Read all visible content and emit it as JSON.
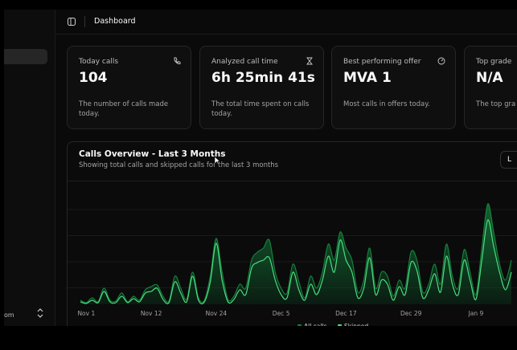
{
  "sidebar": {
    "footer": "om"
  },
  "header": {
    "title": "Dashboard"
  },
  "cards": [
    {
      "title": "Today calls",
      "value": "104",
      "description": "The number of calls made today."
    },
    {
      "title": "Analyzed call time",
      "value": "6h 25min 41s",
      "description": "The total time spent on calls today."
    },
    {
      "title": "Best performing offer",
      "value": "MVA 1",
      "description": "Most calls in offers today."
    },
    {
      "title": "Top grade",
      "value": "N/A",
      "description": "The top gra"
    }
  ],
  "range_button": "L",
  "chart_data": {
    "type": "area",
    "title": "Calls Overview - Last 3 Months",
    "subtitle": "Showing total calls and skipped calls for the last 3 months",
    "categories": [
      null,
      "Nov 1",
      null,
      null,
      null,
      null,
      null,
      null,
      null,
      null,
      null,
      null,
      "Nov 12",
      null,
      null,
      null,
      null,
      null,
      null,
      null,
      null,
      null,
      null,
      "Nov 24",
      null,
      null,
      null,
      null,
      null,
      null,
      null,
      null,
      null,
      null,
      "Dec 5",
      null,
      null,
      null,
      null,
      null,
      null,
      null,
      null,
      null,
      null,
      "Dec 17",
      null,
      null,
      null,
      null,
      null,
      null,
      null,
      null,
      null,
      null,
      "Dec 29",
      null,
      null,
      null,
      null,
      null,
      null,
      null,
      null,
      null,
      null,
      "Jan 9",
      null,
      null,
      null,
      null,
      null,
      null
    ],
    "ylim": [
      0,
      130
    ],
    "grid": true,
    "series": [
      {
        "name": "All calls",
        "color": "#15803d",
        "values": [
          5,
          2,
          8,
          3,
          20,
          5,
          4,
          14,
          3,
          10,
          5,
          18,
          22,
          24,
          10,
          4,
          35,
          20,
          6,
          40,
          8,
          5,
          35,
          82,
          40,
          6,
          10,
          25,
          20,
          55,
          65,
          70,
          80,
          40,
          20,
          14,
          50,
          28,
          8,
          35,
          20,
          40,
          75,
          55,
          90,
          70,
          55,
          15,
          30,
          70,
          20,
          40,
          35,
          10,
          30,
          20,
          65,
          55,
          15,
          25,
          50,
          25,
          75,
          35,
          20,
          68,
          40,
          12,
          70,
          125,
          90,
          50,
          30,
          55
        ]
      },
      {
        "name": "Skipped",
        "color": "#4ade80",
        "values": [
          3,
          1,
          5,
          2,
          16,
          3,
          2,
          10,
          2,
          7,
          3,
          14,
          16,
          20,
          6,
          2,
          28,
          14,
          3,
          35,
          5,
          3,
          28,
          76,
          30,
          3,
          6,
          18,
          12,
          45,
          52,
          55,
          58,
          30,
          12,
          8,
          40,
          18,
          5,
          25,
          12,
          30,
          60,
          40,
          80,
          55,
          40,
          8,
          20,
          58,
          12,
          30,
          25,
          5,
          22,
          12,
          52,
          42,
          8,
          18,
          38,
          15,
          60,
          25,
          12,
          55,
          30,
          6,
          55,
          105,
          72,
          40,
          18,
          40
        ]
      }
    ]
  }
}
